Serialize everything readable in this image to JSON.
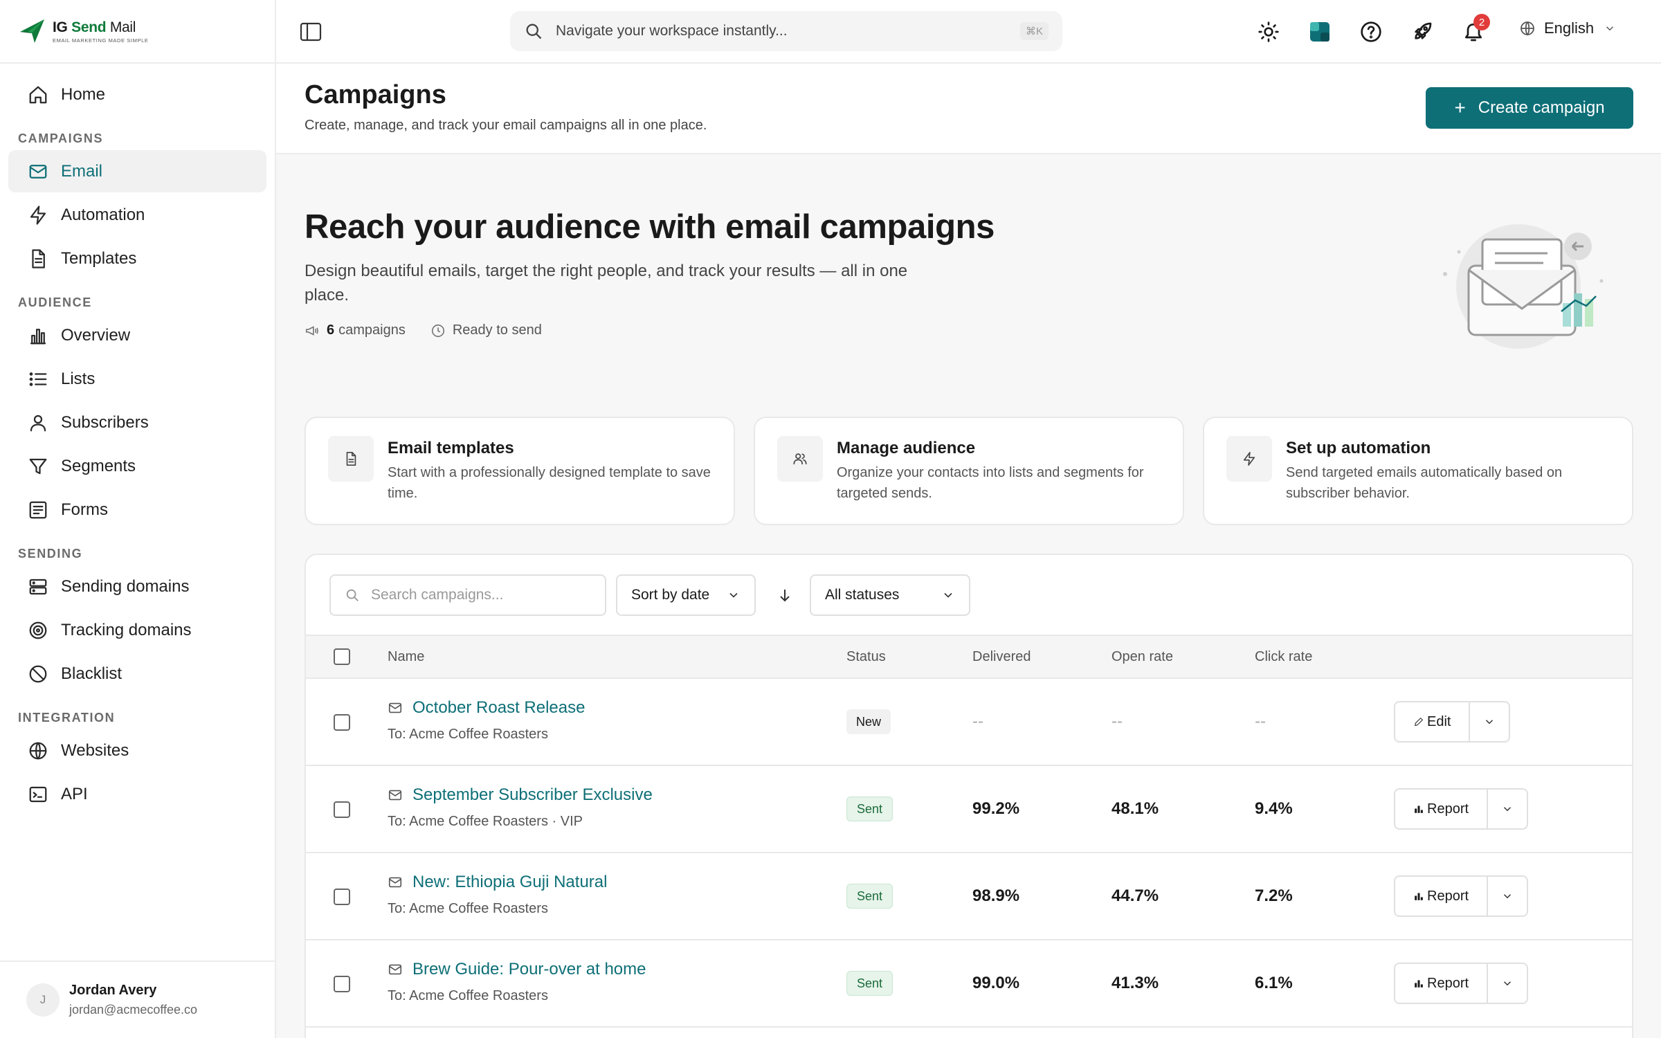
{
  "brand": {
    "name_ig": "IG",
    "name_send": "Send",
    "name_mail": "Mail",
    "tagline": "EMAIL MARKETING MADE SIMPLE",
    "accent": "#0e6f77"
  },
  "sidebar": {
    "home": "Home",
    "sections": {
      "campaigns": "CAMPAIGNS",
      "audience": "AUDIENCE",
      "sending": "SENDING",
      "integration": "INTEGRATION"
    },
    "items": {
      "email": "Email",
      "automation": "Automation",
      "templates": "Templates",
      "overview": "Overview",
      "lists": "Lists",
      "subscribers": "Subscribers",
      "segments": "Segments",
      "forms": "Forms",
      "sending_domains": "Sending domains",
      "tracking_domains": "Tracking domains",
      "blacklist": "Blacklist",
      "websites": "Websites",
      "api": "API"
    },
    "user": {
      "initial": "J",
      "name": "Jordan Avery",
      "email": "jordan@acmecoffee.co"
    }
  },
  "topbar": {
    "search_placeholder": "Navigate your workspace instantly...",
    "search_shortcut": "⌘K",
    "notification_count": "2",
    "language": "English",
    "icons": [
      "sidebar-toggle-icon",
      "sun-icon",
      "app-logo-icon",
      "help-icon",
      "rocket-icon",
      "bell-icon",
      "globe-icon"
    ]
  },
  "page": {
    "title": "Campaigns",
    "subtitle": "Create, manage, and track your email campaigns all in one place.",
    "create_button": "Create campaign"
  },
  "hero": {
    "title": "Reach your audience with email campaigns",
    "description": "Design beautiful emails, target the right people, and track your results — all in one place.",
    "campaign_count": "6",
    "campaign_count_label": "campaigns",
    "ready_label": "Ready to send"
  },
  "cards": [
    {
      "title": "Email templates",
      "desc": "Start with a professionally designed template to save time.",
      "icon": "document-icon"
    },
    {
      "title": "Manage audience",
      "desc": "Organize your contacts into lists and segments for targeted sends.",
      "icon": "users-icon"
    },
    {
      "title": "Set up automation",
      "desc": "Send targeted emails automatically based on subscriber behavior.",
      "icon": "lightning-icon"
    }
  ],
  "table": {
    "search_placeholder": "Search campaigns...",
    "sort_label": "Sort by date",
    "status_filter": "All statuses",
    "headers": {
      "name": "Name",
      "status": "Status",
      "delivered": "Delivered",
      "open_rate": "Open rate",
      "click_rate": "Click rate"
    },
    "rows": [
      {
        "name": "October Roast Release",
        "to": "To: Acme Coffee Roasters",
        "status": "New",
        "delivered": "--",
        "open": "--",
        "click": "--",
        "action": "Edit"
      },
      {
        "name": "September Subscriber Exclusive",
        "to": "To: Acme Coffee Roasters · VIP",
        "status": "Sent",
        "delivered": "99.2%",
        "open": "48.1%",
        "click": "9.4%",
        "action": "Report"
      },
      {
        "name": "New: Ethiopia Guji Natural",
        "to": "To: Acme Coffee Roasters",
        "status": "Sent",
        "delivered": "98.9%",
        "open": "44.7%",
        "click": "7.2%",
        "action": "Report"
      },
      {
        "name": "Brew Guide: Pour-over at home",
        "to": "To: Acme Coffee Roasters",
        "status": "Sent",
        "delivered": "99.0%",
        "open": "41.3%",
        "click": "6.1%",
        "action": "Report"
      }
    ]
  }
}
